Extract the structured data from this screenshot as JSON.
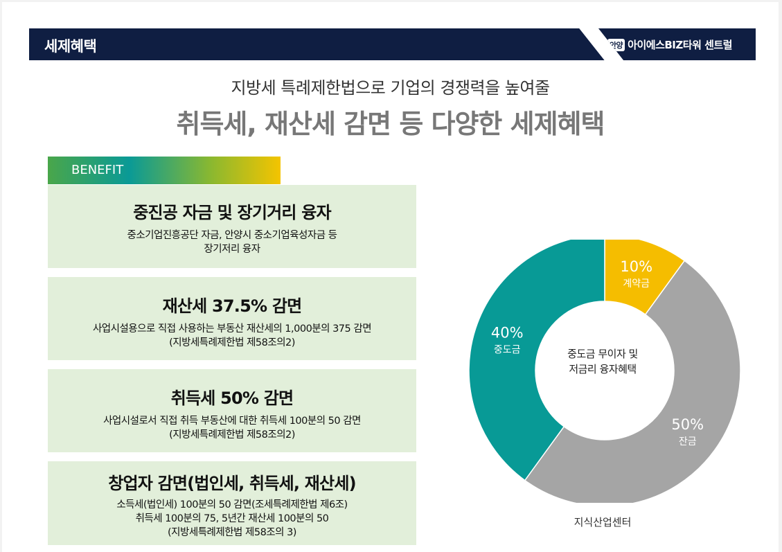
{
  "header": {
    "title": "세제혜택",
    "brand_badge": "안양",
    "brand_name": "아이에스BIZ타워 센트럴"
  },
  "subtitle": "지방세 특례제한법으로 기업의 경쟁력을 높여줄",
  "main_title": "취득세, 재산세 감면 등 다양한 세제혜택",
  "benefit_label": "BENEFIT",
  "cards": [
    {
      "title": "중진공 자금 및 장기거리 융자",
      "lines": [
        "중소기업진흥공단 자금, 안양시 중소기업육성자금 등",
        "장기저리 융자"
      ]
    },
    {
      "title": "재산세 37.5% 감면",
      "lines": [
        "사업시설용으로 직접 사용하는 부동산 재산세의 1,000분의 375 감면",
        "(지방세특례제한법 제58조의2)"
      ]
    },
    {
      "title": "취득세 50% 감면",
      "lines": [
        "사업시설로서 직접 취득 부동산에 대한 취득세 100분의 50 감면",
        "(지방세특례제한법 제58조의2)"
      ]
    },
    {
      "title": "창업자 감면(법인세, 취득세, 재산세)",
      "lines": [
        "소득세(법인세) 100분의 50 감면(조세특례제한법 제6조)",
        "취득세 100분의 75, 5년간 재산세 100분의 50",
        "(지방세특례제한법 제58조의 3)"
      ]
    }
  ],
  "chart_data": {
    "type": "pie",
    "center_lines": [
      "중도금 무이자 및",
      "저금리 융자혜택"
    ],
    "caption": "지식산업센터",
    "slices": [
      {
        "label": "계약금",
        "pct_text": "10%",
        "value": 10,
        "color": "#f5bd00"
      },
      {
        "label": "잔금",
        "pct_text": "50%",
        "value": 50,
        "color": "#a5a5a5"
      },
      {
        "label": "중도금",
        "pct_text": "40%",
        "value": 40,
        "color": "#089a96"
      }
    ]
  }
}
